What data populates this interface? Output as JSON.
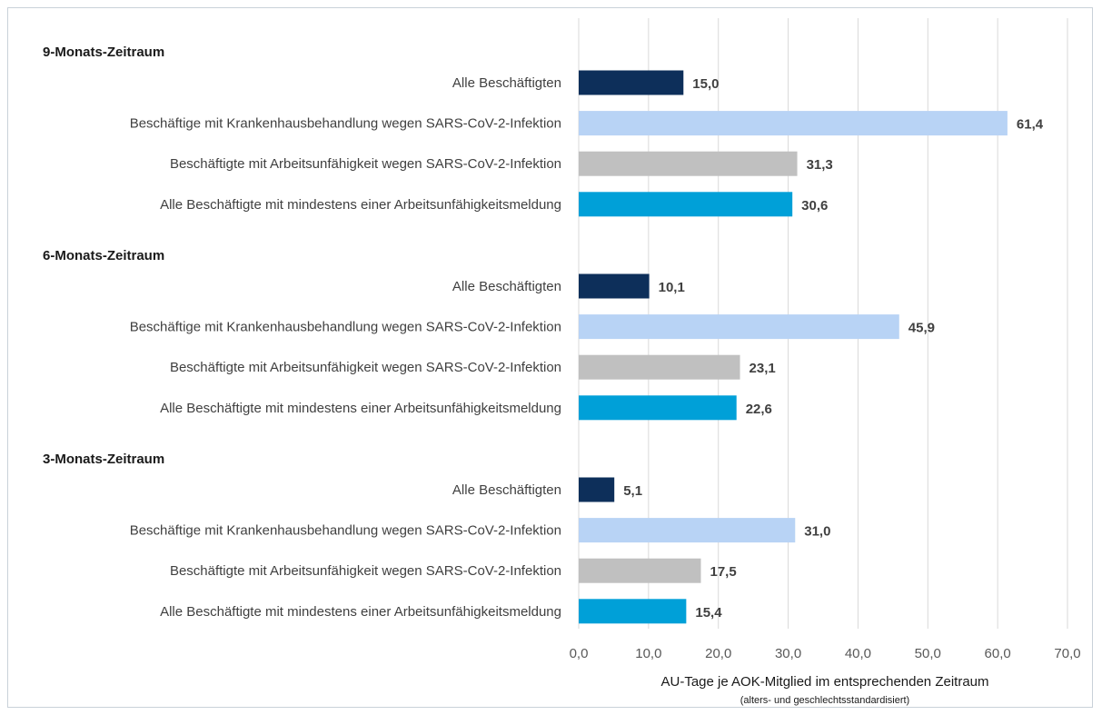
{
  "chart_data": {
    "type": "bar",
    "orientation": "horizontal",
    "xlabel": "AU-Tage je AOK-Mitglied im entsprechenden Zeitraum",
    "xlabel_note": "(alters- und geschlechtsstandardisiert)",
    "xlim": [
      0,
      70
    ],
    "xticks": [
      "0,0",
      "10,0",
      "20,0",
      "30,0",
      "40,0",
      "50,0",
      "60,0",
      "70,0"
    ],
    "grid": true,
    "categories": [
      "Alle Beschäftigten",
      "Beschäftige mit Krankenhausbehandlung wegen SARS-CoV-2-Infektion",
      "Beschäftigte mit Arbeitsunfähigkeit wegen SARS-CoV-2-Infektion",
      "Alle Beschäftigte mit mindestens einer Arbeitsunfähigkeitsmeldung"
    ],
    "category_colors": [
      "#0d2f5a",
      "#b8d3f5",
      "#c0c0c0",
      "#00a0d8"
    ],
    "groups": [
      {
        "name": "9-Monats-Zeitraum",
        "values": [
          15.0,
          61.4,
          31.3,
          30.6
        ],
        "labels": [
          "15,0",
          "61,4",
          "31,3",
          "30,6"
        ]
      },
      {
        "name": "6-Monats-Zeitraum",
        "values": [
          10.1,
          45.9,
          23.1,
          22.6
        ],
        "labels": [
          "10,1",
          "45,9",
          "23,1",
          "22,6"
        ]
      },
      {
        "name": "3-Monats-Zeitraum",
        "values": [
          5.1,
          31.0,
          17.5,
          15.4
        ],
        "labels": [
          "5,1",
          "31,0",
          "17,5",
          "15,4"
        ]
      }
    ]
  }
}
